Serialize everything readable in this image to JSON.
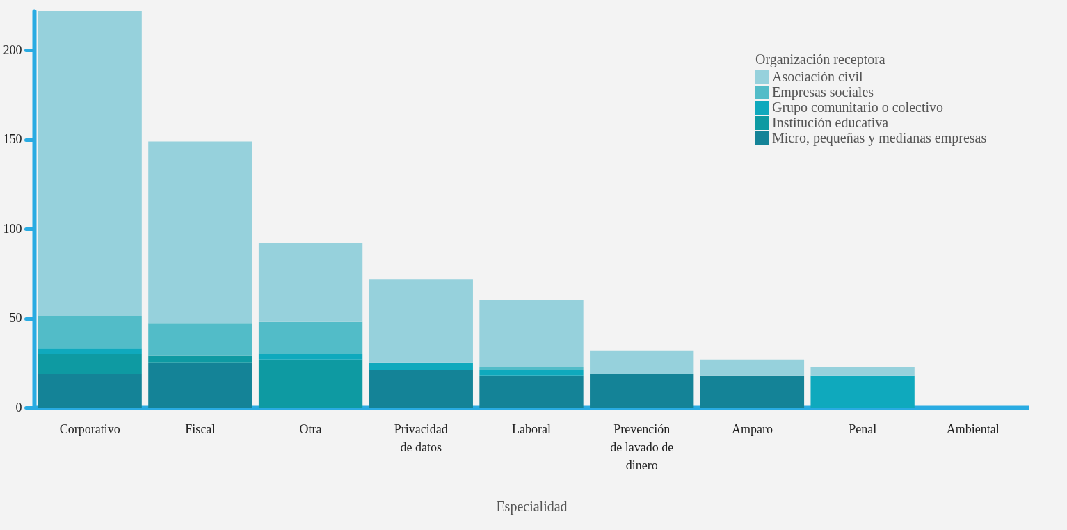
{
  "chart_data": {
    "type": "bar",
    "stacked": true,
    "xlabel": "Especialidad",
    "legend_title": "Organización receptora",
    "categories": [
      "Corporativo",
      "Fiscal",
      "Otra",
      "Privacidad de datos",
      "Laboral",
      "Prevención de lavado de dinero",
      "Amparo",
      "Penal",
      "Ambiental"
    ],
    "series": [
      {
        "name": "Micro, pequeñas y medianas empresas",
        "color": "#148397",
        "values": [
          19,
          25,
          0,
          21,
          18,
          19,
          18,
          0,
          0
        ]
      },
      {
        "name": "Institución educativa",
        "color": "#0e9aa2",
        "values": [
          11,
          4,
          27,
          0,
          0,
          0,
          0,
          0,
          0
        ]
      },
      {
        "name": "Grupo comunitario o colectivo",
        "color": "#0fa9bd",
        "values": [
          3,
          0,
          3,
          4,
          3,
          0,
          0,
          18,
          0
        ]
      },
      {
        "name": "Empresas sociales",
        "color": "#52bcc8",
        "values": [
          18,
          18,
          18,
          0,
          2,
          0,
          0,
          0,
          0
        ]
      },
      {
        "name": "Asociación civil",
        "color": "#96d1dc",
        "values": [
          171,
          102,
          44,
          47,
          37,
          13,
          9,
          5,
          0
        ]
      }
    ],
    "ylim": [
      0,
      222
    ],
    "yticks": [
      0,
      50,
      100,
      150,
      200
    ],
    "grid": false,
    "legend": "top right"
  }
}
